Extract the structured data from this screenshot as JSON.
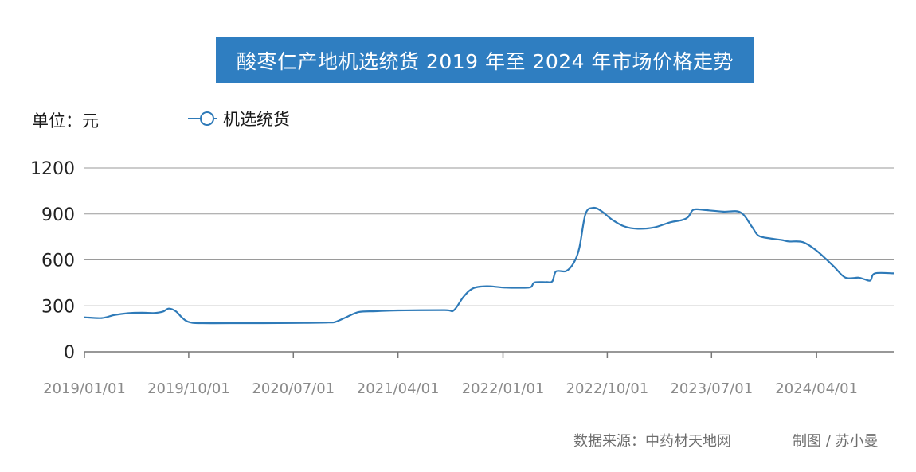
{
  "colors": {
    "accent": "#2f7ec1",
    "line": "#2e7ab8",
    "grid": "#9a9a9a",
    "axis": "#777777",
    "text": "#1a1a1a",
    "tick_x": "#8a8a8a",
    "footer": "#6e6e6e"
  },
  "chart_data": {
    "type": "line",
    "title": "酸枣仁产地机选统货 2019 年至 2024 年市场价格走势",
    "unit_label": "单位：元",
    "legend": {
      "placement": "top-left",
      "marker": "open-circle"
    },
    "xlabel": "",
    "ylabel": "",
    "xlim": [
      "2019-01-01",
      "2024-10-20"
    ],
    "ylim": [
      0,
      1200
    ],
    "y_ticks": [
      0,
      300,
      600,
      900,
      1200
    ],
    "x_ticks": [
      "2019/01/01",
      "2019/10/01",
      "2020/07/01",
      "2021/04/01",
      "2022/01/01",
      "2022/10/01",
      "2023/07/01",
      "2024/04/01"
    ],
    "grid": {
      "horizontal": true,
      "vertical": false
    },
    "series": [
      {
        "name": "机选统货",
        "color": "#2e7ab8",
        "points": [
          [
            "2019-01-01",
            225
          ],
          [
            "2019-02-15",
            220
          ],
          [
            "2019-03-20",
            240
          ],
          [
            "2019-04-25",
            252
          ],
          [
            "2019-06-01",
            255
          ],
          [
            "2019-07-01",
            253
          ],
          [
            "2019-07-25",
            262
          ],
          [
            "2019-08-10",
            282
          ],
          [
            "2019-08-28",
            265
          ],
          [
            "2019-09-15",
            220
          ],
          [
            "2019-10-01",
            195
          ],
          [
            "2019-11-01",
            187
          ],
          [
            "2020-03-01",
            187
          ],
          [
            "2020-07-01",
            188
          ],
          [
            "2020-10-01",
            191
          ],
          [
            "2020-10-20",
            196
          ],
          [
            "2020-11-20",
            230
          ],
          [
            "2020-12-20",
            260
          ],
          [
            "2021-02-01",
            265
          ],
          [
            "2021-04-01",
            270
          ],
          [
            "2021-08-01",
            272
          ],
          [
            "2021-08-25",
            270
          ],
          [
            "2021-09-20",
            360
          ],
          [
            "2021-10-15",
            415
          ],
          [
            "2021-11-20",
            428
          ],
          [
            "2022-01-01",
            420
          ],
          [
            "2022-02-20",
            418
          ],
          [
            "2022-03-15",
            423
          ],
          [
            "2022-03-25",
            453
          ],
          [
            "2022-04-25",
            455
          ],
          [
            "2022-05-10",
            460
          ],
          [
            "2022-05-20",
            525
          ],
          [
            "2022-06-15",
            527
          ],
          [
            "2022-07-05",
            580
          ],
          [
            "2022-07-20",
            680
          ],
          [
            "2022-08-05",
            900
          ],
          [
            "2022-08-25",
            940
          ],
          [
            "2022-09-15",
            920
          ],
          [
            "2022-10-15",
            860
          ],
          [
            "2022-11-15",
            818
          ],
          [
            "2022-12-20",
            803
          ],
          [
            "2023-02-01",
            812
          ],
          [
            "2023-03-15",
            845
          ],
          [
            "2023-04-15",
            860
          ],
          [
            "2023-05-01",
            880
          ],
          [
            "2023-05-15",
            928
          ],
          [
            "2023-06-15",
            925
          ],
          [
            "2023-08-01",
            915
          ],
          [
            "2023-09-15",
            910
          ],
          [
            "2023-10-15",
            815
          ],
          [
            "2023-11-01",
            758
          ],
          [
            "2023-12-01",
            740
          ],
          [
            "2024-01-01",
            730
          ],
          [
            "2024-01-20",
            720
          ],
          [
            "2024-02-25",
            716
          ],
          [
            "2024-04-01",
            660
          ],
          [
            "2024-05-15",
            560
          ],
          [
            "2024-06-15",
            485
          ],
          [
            "2024-07-20",
            484
          ],
          [
            "2024-08-05",
            473
          ],
          [
            "2024-08-20",
            466
          ],
          [
            "2024-09-01",
            512
          ],
          [
            "2024-10-20",
            512
          ]
        ]
      }
    ]
  },
  "footer": {
    "source": "数据来源：中药材天地网",
    "credit": "制图 / 苏小曼"
  }
}
